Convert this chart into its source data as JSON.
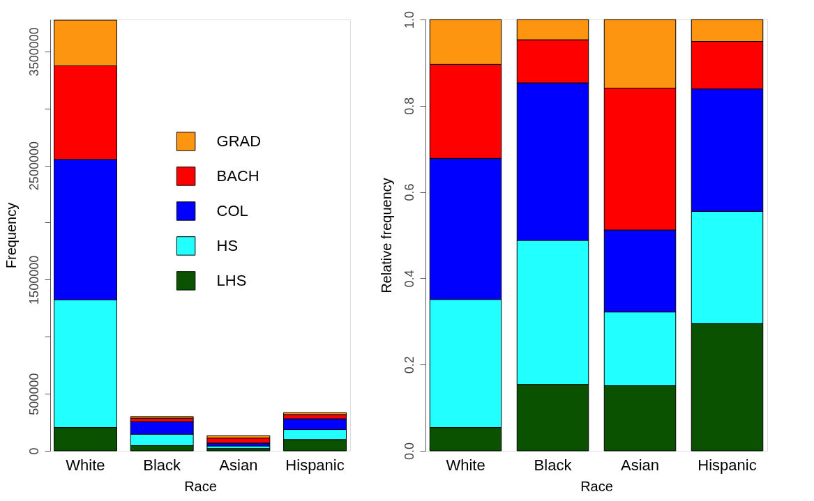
{
  "chart_data": [
    {
      "type": "bar",
      "stacked": true,
      "xlabel": "Race",
      "ylabel": "Frequency",
      "categories": [
        "White",
        "Black",
        "Asian",
        "Hispanic"
      ],
      "series": [
        {
          "name": "LHS",
          "color": "#0b5200",
          "values": [
            204000,
            46000,
            20000,
            99000
          ]
        },
        {
          "name": "HS",
          "color": "#22ffff",
          "values": [
            1120000,
            100000,
            23000,
            87000
          ]
        },
        {
          "name": "COL",
          "color": "#0000ff",
          "values": [
            1230000,
            110000,
            25000,
            95000
          ]
        },
        {
          "name": "BACH",
          "color": "#ff0000",
          "values": [
            820000,
            30000,
            44000,
            37000
          ]
        },
        {
          "name": "GRAD",
          "color": "#fd9510",
          "values": [
            400000,
            14000,
            21000,
            17000
          ]
        }
      ],
      "ylim": [
        0,
        3780000
      ],
      "yticks": [
        {
          "value": 0,
          "label": "0"
        },
        500000,
        {
          "value": 1000000,
          "label": null
        },
        1500000,
        {
          "value": 2000000,
          "label": null
        },
        2500000,
        {
          "value": 3000000,
          "label": null
        },
        3500000
      ],
      "legend": "top",
      "grid": false
    },
    {
      "type": "bar",
      "stacked": true,
      "xlabel": "Race",
      "ylabel": "Relative frequency",
      "categories": [
        "White",
        "Black",
        "Asian",
        "Hispanic"
      ],
      "series": [
        {
          "color": "#0b5200",
          "values": [
            0.054,
            0.154,
            0.151,
            0.295
          ]
        },
        {
          "color": "#22ffff",
          "values": [
            0.297,
            0.334,
            0.171,
            0.26
          ]
        },
        {
          "color": "#0000ff",
          "values": [
            0.327,
            0.365,
            0.19,
            0.284
          ]
        },
        {
          "color": "#ff0000",
          "values": [
            0.218,
            0.1,
            0.329,
            0.11
          ]
        },
        {
          "color": "#fd9510",
          "values": [
            0.104,
            0.047,
            0.159,
            0.051
          ]
        }
      ],
      "ylim": [
        0,
        1
      ],
      "yticks": [
        {
          "value": 0,
          "label": "0.0"
        },
        0.2,
        0.4,
        0.6,
        0.8,
        {
          "value": 1,
          "label": "1.0"
        }
      ],
      "legend": false,
      "grid": false
    }
  ]
}
